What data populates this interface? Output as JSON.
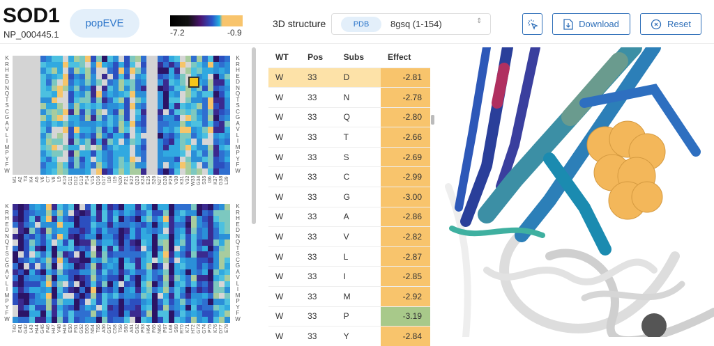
{
  "header": {
    "gene": "SOD1",
    "accession": "NP_000445.1",
    "model": "popEVE",
    "colorbar": {
      "min_label": "-7.2",
      "max_label": "-0.9",
      "colors": [
        "#000000",
        "#4a1470",
        "#2a55c8",
        "#25b0e0",
        "#f8c46c"
      ]
    }
  },
  "structure": {
    "label": "3D structure",
    "source": "PDB",
    "selected": "8gsq (1-154)"
  },
  "toolbar": {
    "select_icon": "cursor-sparkle-icon",
    "download": "Download",
    "reset": "Reset"
  },
  "heatmap": {
    "amino_acids": [
      "K",
      "R",
      "H",
      "E",
      "D",
      "N",
      "Q",
      "T",
      "S",
      "C",
      "G",
      "A",
      "V",
      "L",
      "I",
      "M",
      "P",
      "Y",
      "F",
      "W"
    ],
    "blocks": [
      {
        "positions": [
          "M1",
          "A2",
          "T3",
          "K4",
          "A5",
          "V6",
          "C7",
          "V8",
          "L9",
          "K10",
          "G11",
          "D12",
          "G13",
          "P14",
          "V15",
          "Q16",
          "G17",
          "I18",
          "I19",
          "N20",
          "F21",
          "E22",
          "Q23",
          "K24",
          "E25",
          "S26",
          "N27",
          "G28",
          "P29",
          "V30",
          "K31",
          "V32",
          "W33",
          "G34",
          "S35",
          "I36",
          "K37",
          "G38",
          "L39"
        ],
        "missing": [
          0,
          1,
          2,
          3,
          4,
          24,
          25
        ],
        "selected": {
          "position": "W33",
          "aa": "D"
        }
      },
      {
        "positions": [
          "T40",
          "E41",
          "G42",
          "L43",
          "H44",
          "G45",
          "F46",
          "H47",
          "V48",
          "H49",
          "E50",
          "F51",
          "G52",
          "D53",
          "N54",
          "T55",
          "A56",
          "G57",
          "C58",
          "T59",
          "S60",
          "A61",
          "G62",
          "P63",
          "H64",
          "F65",
          "N66",
          "P67",
          "L68",
          "S69",
          "R70",
          "K71",
          "H72",
          "G73",
          "G74",
          "P75",
          "K76",
          "D77",
          "E78"
        ],
        "missing": []
      }
    ]
  },
  "table": {
    "columns": [
      "WT",
      "Pos",
      "Subs",
      "Effect"
    ],
    "rows": [
      {
        "wt": "W",
        "pos": "33",
        "subs": "D",
        "effect": "-2.81",
        "color": "#f8c46c",
        "selected": true
      },
      {
        "wt": "W",
        "pos": "33",
        "subs": "N",
        "effect": "-2.78",
        "color": "#f8c46c"
      },
      {
        "wt": "W",
        "pos": "33",
        "subs": "Q",
        "effect": "-2.80",
        "color": "#f8c46c"
      },
      {
        "wt": "W",
        "pos": "33",
        "subs": "T",
        "effect": "-2.66",
        "color": "#f8c46c"
      },
      {
        "wt": "W",
        "pos": "33",
        "subs": "S",
        "effect": "-2.69",
        "color": "#f8c46c"
      },
      {
        "wt": "W",
        "pos": "33",
        "subs": "C",
        "effect": "-2.99",
        "color": "#f8c46c"
      },
      {
        "wt": "W",
        "pos": "33",
        "subs": "G",
        "effect": "-3.00",
        "color": "#f8c46c"
      },
      {
        "wt": "W",
        "pos": "33",
        "subs": "A",
        "effect": "-2.86",
        "color": "#f8c46c"
      },
      {
        "wt": "W",
        "pos": "33",
        "subs": "V",
        "effect": "-2.82",
        "color": "#f8c46c"
      },
      {
        "wt": "W",
        "pos": "33",
        "subs": "L",
        "effect": "-2.87",
        "color": "#f8c46c"
      },
      {
        "wt": "W",
        "pos": "33",
        "subs": "I",
        "effect": "-2.85",
        "color": "#f8c46c"
      },
      {
        "wt": "W",
        "pos": "33",
        "subs": "M",
        "effect": "-2.92",
        "color": "#f8c46c"
      },
      {
        "wt": "W",
        "pos": "33",
        "subs": "P",
        "effect": "-3.19",
        "color": "#a8c98a"
      },
      {
        "wt": "W",
        "pos": "33",
        "subs": "Y",
        "effect": "-2.84",
        "color": "#f8c46c"
      }
    ]
  }
}
